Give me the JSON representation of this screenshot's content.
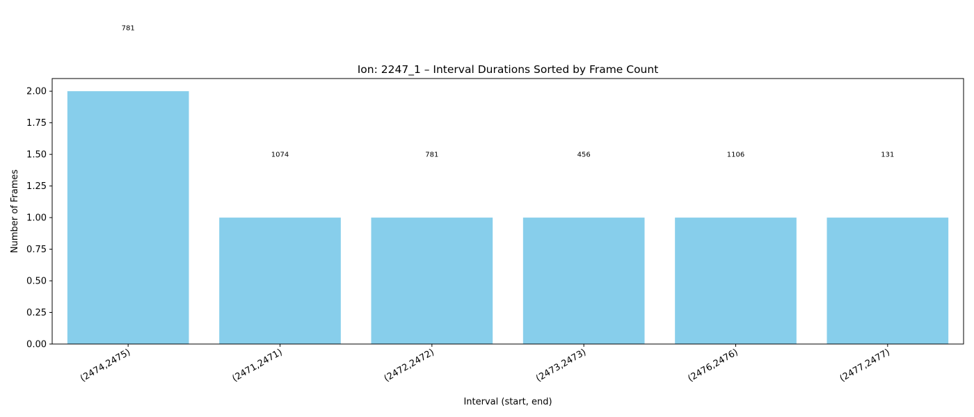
{
  "chart_data": {
    "type": "bar",
    "title": "Ion: 2247_1 – Interval Durations Sorted by Frame Count",
    "xlabel": "Interval (start, end)",
    "ylabel": "Number of Frames",
    "categories": [
      "(2474,2475)",
      "(2471,2471)",
      "(2472,2472)",
      "(2473,2473)",
      "(2476,2476)",
      "(2477,2477)"
    ],
    "values": [
      2,
      1,
      1,
      1,
      1,
      1
    ],
    "bar_labels": [
      "781",
      "1074",
      "781",
      "456",
      "1106",
      "131"
    ],
    "bar_label_y": [
      2.5,
      1.5,
      1.5,
      1.5,
      1.5,
      1.5
    ],
    "ylim": [
      0,
      2.1
    ],
    "yticks": [
      0,
      0.25,
      0.5,
      0.75,
      1.0,
      1.25,
      1.5,
      1.75,
      2.0
    ],
    "ytick_labels": [
      "0.00",
      "0.25",
      "0.50",
      "0.75",
      "1.00",
      "1.25",
      "1.50",
      "1.75",
      "2.00"
    ],
    "bar_color": "#87ceeb",
    "grid": false,
    "x_tick_rotation_deg": 30
  }
}
